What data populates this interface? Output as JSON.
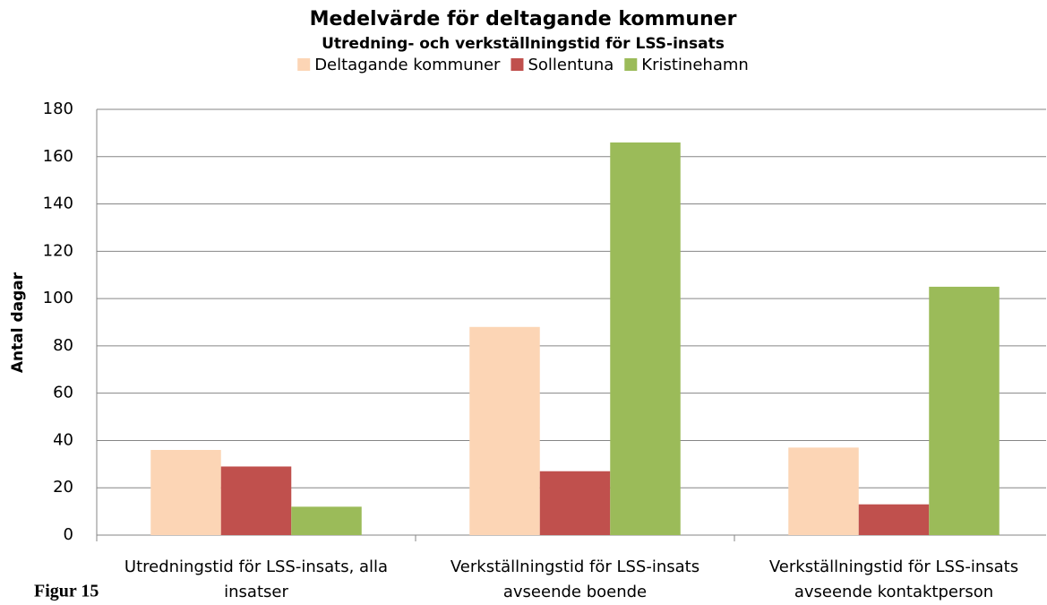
{
  "chart_data": {
    "type": "bar",
    "title": "Medelvärde för deltagande kommuner",
    "subtitle": "Utredning- och verkställningstid för LSS-insats",
    "y_label": "Antal dagar",
    "categories": [
      [
        "Utredningstid för LSS-insats, alla",
        "insatser"
      ],
      [
        "Verkställningstid för LSS-insats",
        "avseende boende"
      ],
      [
        "Verkställningstid för LSS-insats",
        "avseende kontaktperson"
      ]
    ],
    "series": [
      {
        "name": "Deltagande kommuner",
        "color": "#fcd5b5",
        "values": [
          36,
          88,
          37
        ]
      },
      {
        "name": "Sollentuna",
        "color": "#c0504d",
        "values": [
          29,
          27,
          13
        ]
      },
      {
        "name": "Kristinehamn",
        "color": "#9bbb59",
        "values": [
          12,
          166,
          105
        ]
      }
    ],
    "ylim": [
      0,
      180
    ],
    "yticks": [
      0,
      20,
      40,
      60,
      80,
      100,
      120,
      140,
      160,
      180
    ],
    "grid": true,
    "legend": "top"
  },
  "caption": "Figur 15"
}
